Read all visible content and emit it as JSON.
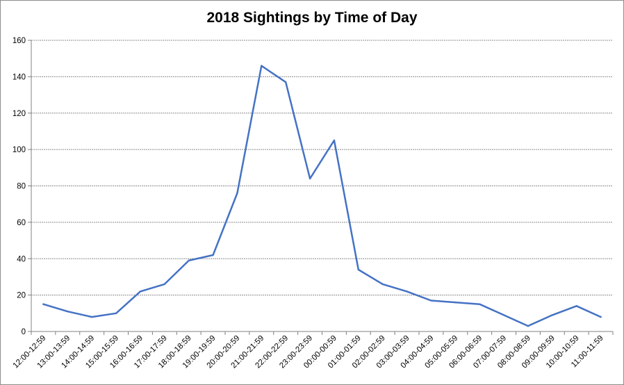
{
  "chart_data": {
    "type": "line",
    "title": "2018 Sightings by Time of Day",
    "xlabel": "",
    "ylabel": "",
    "ylim": [
      0,
      160
    ],
    "yticks": [
      0,
      20,
      40,
      60,
      80,
      100,
      120,
      140,
      160
    ],
    "grid": true,
    "legend": "none",
    "categories": [
      "12:00-12:59",
      "13:00-13:59",
      "14:00-14:59",
      "15:00-15:59",
      "16:00-16:59",
      "17:00-17:59",
      "18:00-18:59",
      "19:00-19:59",
      "20:00-20:59",
      "21:00-21:59",
      "22:00-22:59",
      "23:00-23:59",
      "00:00-00:59",
      "01:00-01:59",
      "02:00-02:59",
      "03:00-03:59",
      "04:00-04:59",
      "05:00-05:59",
      "06:00-06:59",
      "07:00-07:59",
      "08:00-08:59",
      "09:00-09:59",
      "10:00-10:59",
      "11:00-11:59"
    ],
    "series": [
      {
        "values": [
          15,
          11,
          8,
          10,
          22,
          26,
          39,
          42,
          76,
          146,
          137,
          84,
          105,
          34,
          26,
          22,
          17,
          16,
          15,
          9,
          3,
          9,
          14,
          8
        ],
        "color": "#4472c4"
      }
    ]
  }
}
